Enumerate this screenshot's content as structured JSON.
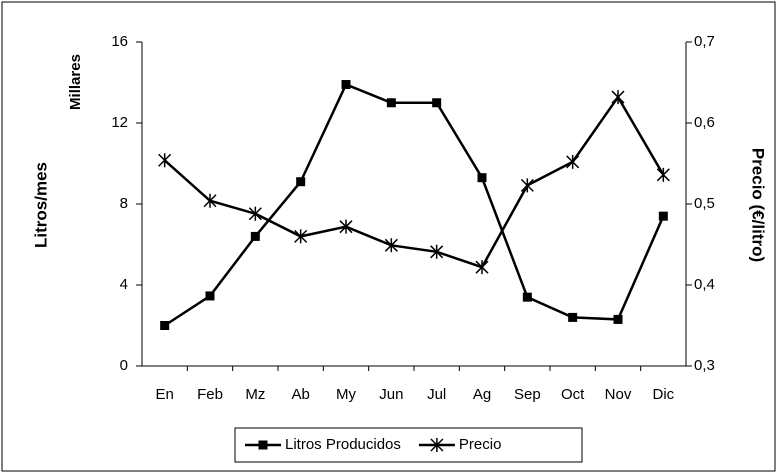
{
  "chart_data": {
    "type": "line",
    "y_label": "Litros/mes",
    "y_unit_label": "Millares",
    "y2_label": "Precio (€/litro)",
    "categories": [
      "En",
      "Feb",
      "Mz",
      "Ab",
      "My",
      "Jun",
      "Jul",
      "Ag",
      "Sep",
      "Oct",
      "Nov",
      "Dic"
    ],
    "series": [
      {
        "name": "Litros Producidos",
        "color": "#000000",
        "marker": "square",
        "values": [
          2.0,
          3.46,
          6.4,
          9.1,
          13.9,
          13.0,
          13.0,
          9.3,
          3.4,
          2.4,
          2.3,
          7.4
        ]
      },
      {
        "name": "Precio",
        "color": "#000000",
        "marker": "asterisk",
        "axis": "y2",
        "values": [
          0.554,
          0.504,
          0.488,
          0.46,
          0.472,
          0.449,
          0.441,
          0.422,
          0.523,
          0.552,
          0.632,
          0.536
        ]
      }
    ],
    "ylim": [
      0,
      16
    ],
    "yticks": [
      0,
      4,
      8,
      12,
      16
    ],
    "y2lim": [
      0.3,
      0.7
    ],
    "y2ticks": [
      {
        "value": 0.3,
        "label": "0,3"
      },
      {
        "value": 0.4,
        "label": "0,4"
      },
      {
        "value": 0.5,
        "label": "0,5"
      },
      {
        "value": 0.6,
        "label": "0,6"
      },
      {
        "value": 0.7,
        "label": "0,7"
      }
    ],
    "grid": false,
    "legend": "bottom"
  }
}
